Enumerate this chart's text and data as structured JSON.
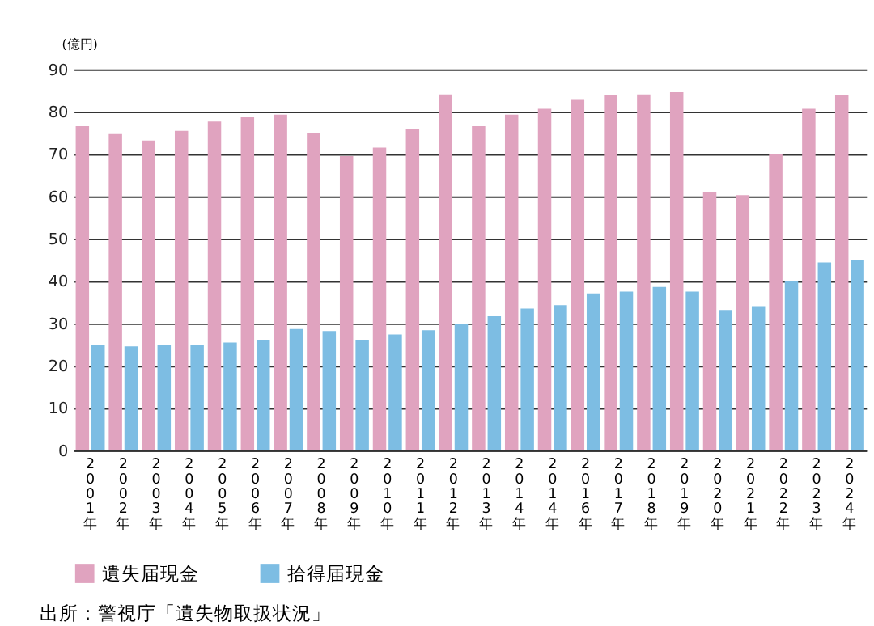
{
  "chart_data": {
    "type": "bar",
    "ylabel": "(億円)",
    "categories": [
      "2001年",
      "2002年",
      "2003年",
      "2004年",
      "2005年",
      "2006年",
      "2007年",
      "2008年",
      "2009年",
      "2010年",
      "2011年",
      "2012年",
      "2013年",
      "2014年",
      "2014年",
      "2016年",
      "2017年",
      "2018年",
      "2019年",
      "2020年",
      "2021年",
      "2022年",
      "2023年",
      "2024年"
    ],
    "series": [
      {
        "name": "遺失届現金",
        "color": "#e0a3bf",
        "values": [
          76.6,
          74.7,
          73.2,
          75.5,
          77.7,
          78.7,
          79.3,
          74.9,
          69.5,
          71.5,
          76.0,
          84.1,
          76.6,
          79.3,
          80.7,
          82.8,
          83.9,
          84.1,
          84.6,
          61.0,
          60.3,
          70.0,
          80.7,
          83.9
        ]
      },
      {
        "name": "拾得届現金",
        "color": "#7dbde3",
        "values": [
          25.0,
          24.6,
          25.0,
          25.0,
          25.5,
          26.0,
          28.7,
          28.2,
          26.0,
          27.4,
          28.4,
          29.9,
          31.7,
          33.5,
          34.3,
          37.1,
          37.5,
          38.6,
          37.5,
          33.2,
          34.1,
          40.0,
          44.4,
          45.0
        ]
      }
    ],
    "ylim": [
      0,
      90
    ],
    "yticks": [
      0,
      10,
      20,
      30,
      40,
      50,
      60,
      70,
      80,
      90
    ],
    "grid": "y",
    "legend": "bottom",
    "annotations": [
      "出所：警視庁「遺失物取扱状況」"
    ]
  }
}
